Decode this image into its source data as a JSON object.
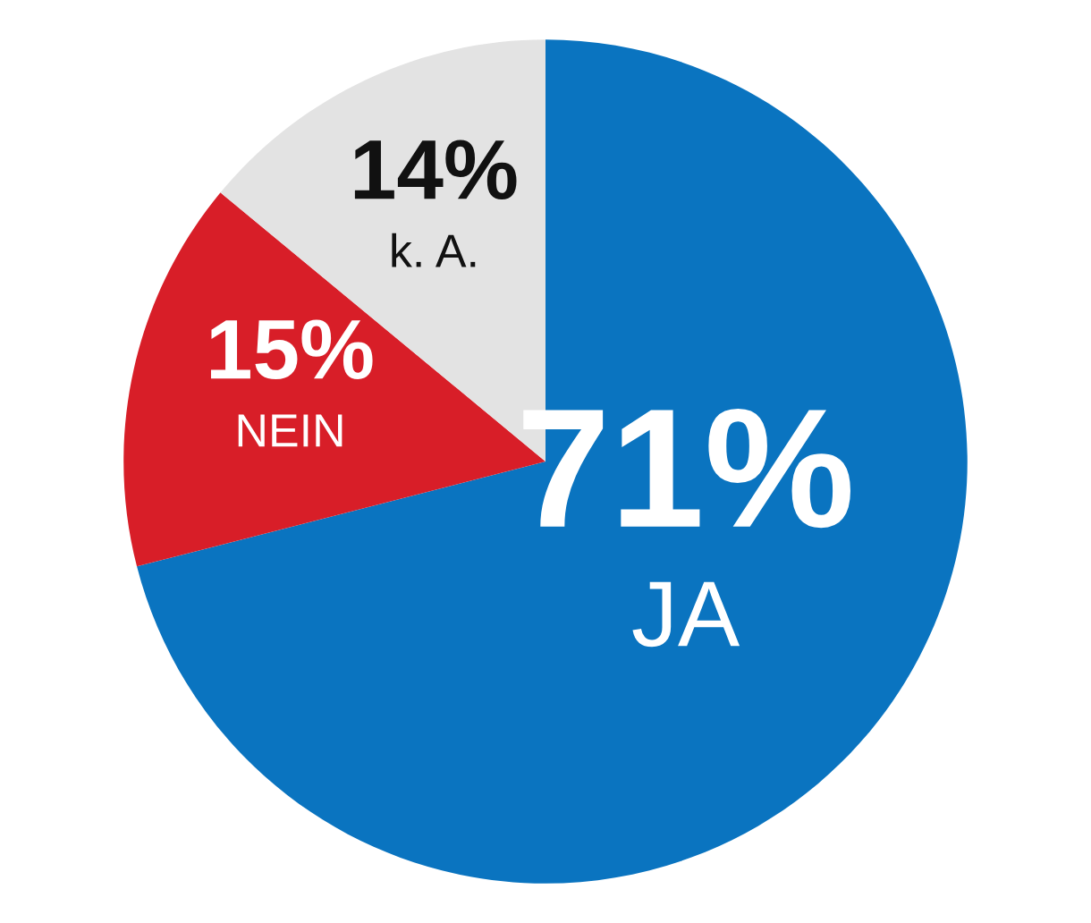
{
  "chart_data": {
    "type": "pie",
    "categories": [
      "JA",
      "NEIN",
      "k. A."
    ],
    "values": [
      71,
      15,
      14
    ],
    "colors": [
      "#0a74c0",
      "#d81e28",
      "#e3e3e3"
    ],
    "value_labels": [
      "71%",
      "15%",
      "14%"
    ]
  }
}
